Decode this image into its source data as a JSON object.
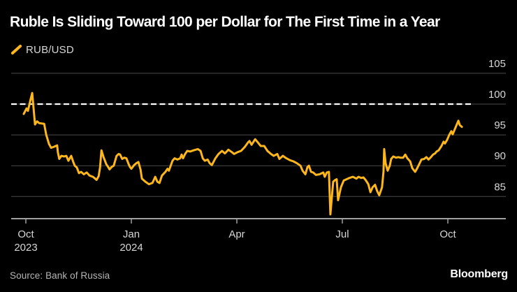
{
  "header": {
    "title": "Ruble Is Sliding Toward 100 per Dollar for The First Time in a Year"
  },
  "legend": {
    "label": "RUB/USD",
    "marker_color": "#fdb71c"
  },
  "footer": {
    "source": "Source: Bank of Russia",
    "brand": "Bloomberg"
  },
  "colors": {
    "background": "#000000",
    "line": "#fdb71c",
    "grid": "#4a4a4a",
    "axis": "#a0a0a0",
    "tick_label": "#d6d6d6",
    "reference": "#ffffff",
    "title": "#ffffff",
    "source_text": "#b5b5b5"
  },
  "chart_data": {
    "type": "line",
    "title": "Ruble Is Sliding Toward 100 per Dollar for The First Time in a Year",
    "xlabel": "",
    "ylabel": "",
    "x_unit": "months_since_oct_2023",
    "ylim": [
      81.4,
      105.9
    ],
    "grid": true,
    "legend_position": "top-left",
    "y_ticks": [
      105,
      100,
      95,
      90,
      85
    ],
    "x_ticks": [
      {
        "label": "Oct",
        "sublabel": "2023",
        "t": 0
      },
      {
        "label": "Jan",
        "sublabel": "2024",
        "t": 3
      },
      {
        "label": "Apr",
        "sublabel": "",
        "t": 6
      },
      {
        "label": "Jul",
        "sublabel": "",
        "t": 9
      },
      {
        "label": "Oct",
        "sublabel": "",
        "t": 12
      }
    ],
    "reference_line": {
      "value": 100,
      "style": "dashed",
      "color": "#ffffff"
    },
    "series": [
      {
        "name": "RUB/USD",
        "color": "#fdb71c",
        "points": [
          [
            -0.06,
            98.4
          ],
          [
            0.02,
            99.3
          ],
          [
            0.06,
            98.9
          ],
          [
            0.12,
            100.4
          ],
          [
            0.18,
            101.8
          ],
          [
            0.26,
            96.7
          ],
          [
            0.32,
            97.2
          ],
          [
            0.38,
            96.9
          ],
          [
            0.52,
            96.8
          ],
          [
            0.58,
            95.0
          ],
          [
            0.66,
            93.5
          ],
          [
            0.72,
            92.9
          ],
          [
            0.81,
            93.1
          ],
          [
            0.89,
            93.3
          ],
          [
            0.91,
            92.2
          ],
          [
            0.95,
            91.1
          ],
          [
            1.01,
            91.6
          ],
          [
            1.09,
            91.5
          ],
          [
            1.15,
            91.6
          ],
          [
            1.21,
            90.8
          ],
          [
            1.29,
            91.6
          ],
          [
            1.35,
            90.6
          ],
          [
            1.39,
            90.0
          ],
          [
            1.45,
            89.7
          ],
          [
            1.51,
            88.8
          ],
          [
            1.57,
            89.0
          ],
          [
            1.65,
            88.6
          ],
          [
            1.73,
            88.9
          ],
          [
            1.81,
            88.4
          ],
          [
            1.91,
            88.2
          ],
          [
            1.97,
            87.9
          ],
          [
            2.01,
            87.7
          ],
          [
            2.07,
            88.3
          ],
          [
            2.11,
            89.7
          ],
          [
            2.15,
            92.5
          ],
          [
            2.21,
            91.4
          ],
          [
            2.25,
            90.8
          ],
          [
            2.29,
            90.2
          ],
          [
            2.34,
            89.8
          ],
          [
            2.38,
            89.4
          ],
          [
            2.44,
            89.8
          ],
          [
            2.5,
            90.0
          ],
          [
            2.54,
            90.8
          ],
          [
            2.58,
            91.6
          ],
          [
            2.64,
            91.9
          ],
          [
            2.68,
            91.8
          ],
          [
            2.74,
            91.1
          ],
          [
            2.8,
            91.3
          ],
          [
            2.86,
            91.2
          ],
          [
            2.92,
            90.3
          ],
          [
            2.96,
            89.8
          ],
          [
            3.0,
            89.5
          ],
          [
            3.08,
            90.1
          ],
          [
            3.14,
            90.4
          ],
          [
            3.2,
            90.6
          ],
          [
            3.26,
            89.4
          ],
          [
            3.3,
            87.9
          ],
          [
            3.4,
            87.4
          ],
          [
            3.5,
            87.0
          ],
          [
            3.6,
            87.2
          ],
          [
            3.68,
            88.2
          ],
          [
            3.74,
            87.4
          ],
          [
            3.8,
            87.2
          ],
          [
            3.87,
            88.4
          ],
          [
            3.97,
            89.0
          ],
          [
            4.03,
            89.5
          ],
          [
            4.07,
            89.2
          ],
          [
            4.17,
            90.8
          ],
          [
            4.23,
            91.2
          ],
          [
            4.31,
            91.0
          ],
          [
            4.39,
            91.2
          ],
          [
            4.43,
            91.8
          ],
          [
            4.47,
            91.2
          ],
          [
            4.53,
            91.9
          ],
          [
            4.59,
            92.4
          ],
          [
            4.67,
            92.3
          ],
          [
            4.77,
            92.5
          ],
          [
            4.89,
            92.7
          ],
          [
            4.97,
            92.4
          ],
          [
            5.03,
            91.2
          ],
          [
            5.09,
            90.8
          ],
          [
            5.17,
            91.0
          ],
          [
            5.23,
            90.4
          ],
          [
            5.29,
            90.1
          ],
          [
            5.39,
            91.2
          ],
          [
            5.48,
            91.9
          ],
          [
            5.58,
            92.4
          ],
          [
            5.66,
            92.0
          ],
          [
            5.76,
            92.6
          ],
          [
            5.86,
            92.2
          ],
          [
            5.92,
            91.9
          ],
          [
            6.02,
            92.2
          ],
          [
            6.12,
            92.4
          ],
          [
            6.22,
            93.0
          ],
          [
            6.32,
            93.8
          ],
          [
            6.36,
            94.0
          ],
          [
            6.42,
            93.4
          ],
          [
            6.52,
            94.3
          ],
          [
            6.58,
            93.9
          ],
          [
            6.68,
            93.2
          ],
          [
            6.78,
            93.2
          ],
          [
            6.87,
            92.4
          ],
          [
            6.97,
            91.9
          ],
          [
            7.05,
            91.6
          ],
          [
            7.15,
            91.9
          ],
          [
            7.21,
            91.1
          ],
          [
            7.31,
            91.6
          ],
          [
            7.41,
            91.2
          ],
          [
            7.51,
            90.9
          ],
          [
            7.61,
            90.7
          ],
          [
            7.71,
            90.4
          ],
          [
            7.81,
            90.0
          ],
          [
            7.87,
            89.2
          ],
          [
            7.95,
            88.6
          ],
          [
            8.01,
            89.8
          ],
          [
            8.05,
            90.0
          ],
          [
            8.11,
            89.0
          ],
          [
            8.17,
            88.9
          ],
          [
            8.25,
            88.5
          ],
          [
            8.35,
            88.6
          ],
          [
            8.46,
            88.9
          ],
          [
            8.5,
            88.2
          ],
          [
            8.56,
            88.9
          ],
          [
            8.62,
            89.0
          ],
          [
            8.66,
            82.1
          ],
          [
            8.74,
            87.4
          ],
          [
            8.8,
            87.7
          ],
          [
            8.84,
            87.8
          ],
          [
            8.88,
            84.4
          ],
          [
            8.96,
            86.5
          ],
          [
            9.04,
            87.6
          ],
          [
            9.12,
            87.8
          ],
          [
            9.2,
            88.0
          ],
          [
            9.3,
            88.2
          ],
          [
            9.4,
            87.9
          ],
          [
            9.46,
            88.2
          ],
          [
            9.54,
            88.0
          ],
          [
            9.6,
            88.1
          ],
          [
            9.66,
            87.7
          ],
          [
            9.74,
            87.0
          ],
          [
            9.8,
            85.7
          ],
          [
            9.86,
            86.5
          ],
          [
            9.93,
            86.9
          ],
          [
            9.99,
            85.9
          ],
          [
            10.05,
            85.2
          ],
          [
            10.13,
            86.5
          ],
          [
            10.17,
            89.0
          ],
          [
            10.19,
            92.7
          ],
          [
            10.23,
            90.4
          ],
          [
            10.29,
            89.2
          ],
          [
            10.35,
            90.0
          ],
          [
            10.39,
            91.1
          ],
          [
            10.45,
            91.5
          ],
          [
            10.53,
            91.3
          ],
          [
            10.59,
            91.4
          ],
          [
            10.65,
            91.3
          ],
          [
            10.73,
            91.3
          ],
          [
            10.79,
            91.8
          ],
          [
            10.85,
            91.2
          ],
          [
            10.93,
            90.7
          ],
          [
            10.99,
            89.6
          ],
          [
            11.07,
            89.0
          ],
          [
            11.13,
            89.6
          ],
          [
            11.19,
            90.3
          ],
          [
            11.25,
            91.0
          ],
          [
            11.33,
            91.1
          ],
          [
            11.39,
            91.4
          ],
          [
            11.45,
            91.0
          ],
          [
            11.52,
            91.4
          ],
          [
            11.58,
            91.8
          ],
          [
            11.64,
            92.0
          ],
          [
            11.68,
            92.3
          ],
          [
            11.74,
            92.5
          ],
          [
            11.82,
            93.2
          ],
          [
            11.88,
            93.9
          ],
          [
            11.92,
            93.6
          ],
          [
            11.98,
            94.2
          ],
          [
            12.04,
            95.0
          ],
          [
            12.1,
            95.6
          ],
          [
            12.14,
            95.1
          ],
          [
            12.22,
            96.2
          ],
          [
            12.3,
            97.3
          ],
          [
            12.34,
            96.6
          ],
          [
            12.4,
            96.3
          ]
        ]
      }
    ]
  }
}
